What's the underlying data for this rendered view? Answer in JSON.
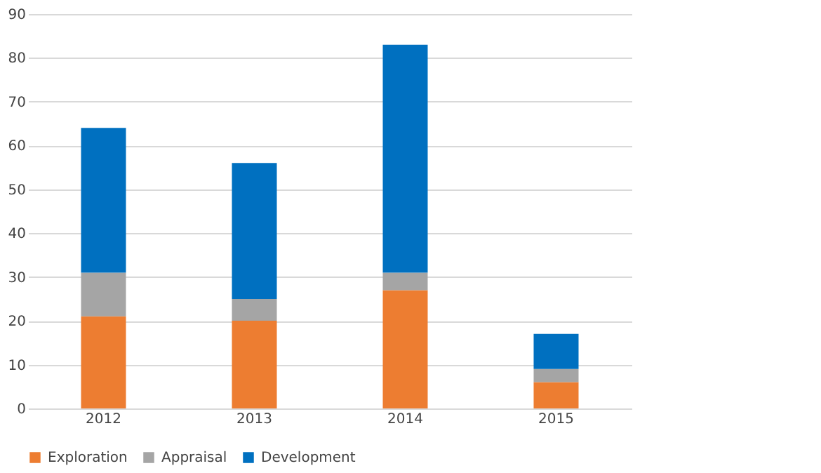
{
  "chart_data": {
    "type": "bar",
    "stacked": true,
    "categories": [
      "2012",
      "2013",
      "2014",
      "2015"
    ],
    "series": [
      {
        "name": "Exploration",
        "color": "#ed7d31",
        "values": [
          21,
          20,
          27,
          6
        ]
      },
      {
        "name": "Appraisal",
        "color": "#a5a5a5",
        "values": [
          10,
          5,
          4,
          3
        ]
      },
      {
        "name": "Development",
        "color": "#0070c0",
        "values": [
          33,
          31,
          52,
          8
        ]
      }
    ],
    "ylim": [
      0,
      90
    ],
    "yticks": [
      0,
      10,
      20,
      30,
      40,
      50,
      60,
      70,
      80,
      90
    ],
    "grid": "y",
    "legend": "bottom"
  }
}
